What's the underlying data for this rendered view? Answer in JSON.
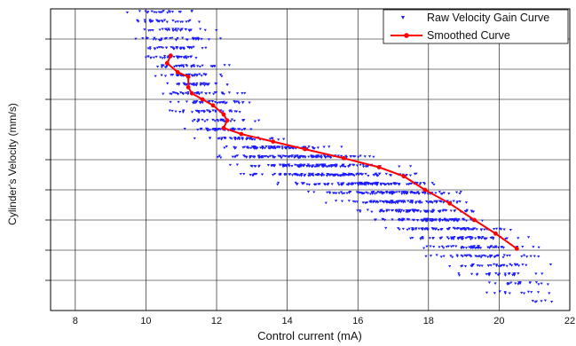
{
  "chart_data": {
    "type": "scatter",
    "title": "",
    "xlabel": "Control current (mA)",
    "ylabel": "Cylinder's Velocity (mm/s)",
    "xlim": [
      7.3,
      22
    ],
    "xticks": [
      8,
      10,
      12,
      14,
      16,
      18,
      20,
      22
    ],
    "y_tick_labels_visible": false,
    "y_gridlines": 10,
    "grid": true,
    "legend": {
      "placement": "top-right",
      "entries": [
        "Raw Velocity Gain Curve",
        "Smoothed Curve"
      ]
    },
    "colors": {
      "raw": "#1a1aff",
      "smooth": "#ff0000",
      "grid": "#000000"
    },
    "series": [
      {
        "name": "Raw Velocity Gain Curve",
        "marker": "triangle-down",
        "note_values": "dense cloud of points; bands listed as level, x-min, x-max, point count (level 1.0 = top axis, 0.0 = bottom axis)",
        "bands": [
          [
            0.99,
            9.3,
            11.8,
            20
          ],
          [
            0.96,
            9.4,
            11.6,
            30
          ],
          [
            0.93,
            9.6,
            12.0,
            30
          ],
          [
            0.9,
            9.6,
            12.3,
            35
          ],
          [
            0.87,
            9.8,
            12.0,
            35
          ],
          [
            0.84,
            9.8,
            11.8,
            35
          ],
          [
            0.81,
            9.9,
            12.5,
            35
          ],
          [
            0.78,
            10.0,
            12.2,
            35
          ],
          [
            0.75,
            10.1,
            12.6,
            35
          ],
          [
            0.72,
            10.2,
            12.8,
            35
          ],
          [
            0.69,
            10.4,
            13.0,
            35
          ],
          [
            0.66,
            10.6,
            13.0,
            35
          ],
          [
            0.63,
            10.8,
            13.2,
            35
          ],
          [
            0.6,
            11.0,
            13.4,
            40
          ],
          [
            0.57,
            11.2,
            14.2,
            45
          ],
          [
            0.54,
            11.6,
            15.8,
            80
          ],
          [
            0.51,
            12.0,
            16.8,
            110
          ],
          [
            0.48,
            12.2,
            17.5,
            120
          ],
          [
            0.45,
            12.6,
            18.0,
            120
          ],
          [
            0.42,
            13.6,
            18.8,
            110
          ],
          [
            0.39,
            14.6,
            19.2,
            100
          ],
          [
            0.36,
            15.0,
            19.6,
            90
          ],
          [
            0.33,
            15.6,
            19.8,
            80
          ],
          [
            0.3,
            16.0,
            20.2,
            80
          ],
          [
            0.27,
            16.6,
            20.6,
            70
          ],
          [
            0.24,
            17.0,
            20.9,
            60
          ],
          [
            0.21,
            17.4,
            21.2,
            55
          ],
          [
            0.18,
            17.8,
            21.5,
            45
          ],
          [
            0.15,
            18.2,
            21.6,
            35
          ],
          [
            0.12,
            18.6,
            21.7,
            25
          ],
          [
            0.09,
            19.2,
            21.8,
            18
          ],
          [
            0.06,
            19.6,
            21.9,
            12
          ],
          [
            0.03,
            20.4,
            21.9,
            6
          ]
        ]
      },
      {
        "name": "Smoothed Curve",
        "marker": "dot",
        "x": [
          10.7,
          10.6,
          10.9,
          11.2,
          11.2,
          11.3,
          11.6,
          11.9,
          12.2,
          12.3,
          12.2,
          12.7,
          13.6,
          14.5,
          15.6,
          16.6,
          17.3,
          17.9,
          18.6,
          19.3,
          19.9,
          20.5
        ],
        "y": [
          0.845,
          0.82,
          0.79,
          0.775,
          0.74,
          0.72,
          0.7,
          0.68,
          0.65,
          0.63,
          0.605,
          0.585,
          0.56,
          0.535,
          0.505,
          0.475,
          0.445,
          0.4,
          0.355,
          0.3,
          0.255,
          0.205
        ]
      }
    ]
  }
}
